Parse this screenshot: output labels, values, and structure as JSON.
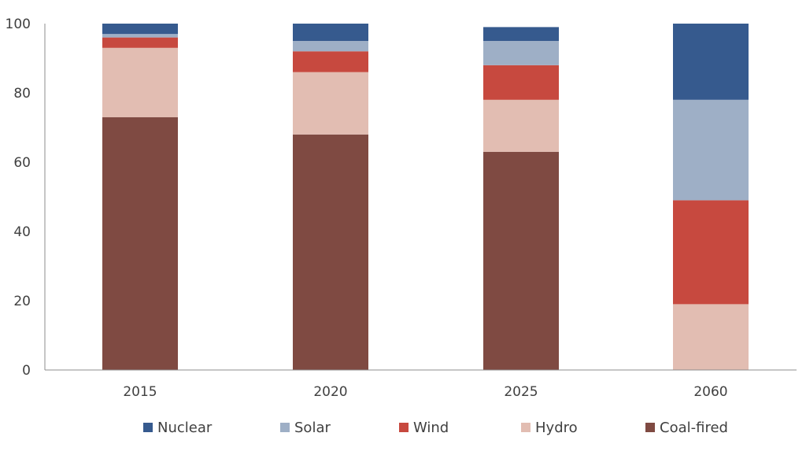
{
  "chart_data": {
    "type": "bar",
    "stacked": true,
    "categories": [
      "2015",
      "2020",
      "2025",
      "2060"
    ],
    "series": [
      {
        "name": "Coal-fired",
        "color": "#7f4a42",
        "values": [
          73,
          68,
          63,
          0
        ]
      },
      {
        "name": "Hydro",
        "color": "#e2bdb2",
        "values": [
          20,
          18,
          15,
          19
        ]
      },
      {
        "name": "Wind",
        "color": "#c7493f",
        "values": [
          3,
          6,
          10,
          30
        ]
      },
      {
        "name": "Solar",
        "color": "#9eafc6",
        "values": [
          1,
          3,
          7,
          29
        ]
      },
      {
        "name": "Nuclear",
        "color": "#365a8e",
        "values": [
          3,
          5,
          4,
          22
        ]
      }
    ],
    "legend_order": [
      "Nuclear",
      "Solar",
      "Wind",
      "Hydro",
      "Coal-fired"
    ],
    "y_ticks": [
      "0",
      "20",
      "40",
      "60",
      "80",
      "100"
    ],
    "ylim": [
      0,
      100
    ],
    "title": "",
    "xlabel": "",
    "ylabel": "",
    "grid": false,
    "legend_position": "bottom"
  }
}
